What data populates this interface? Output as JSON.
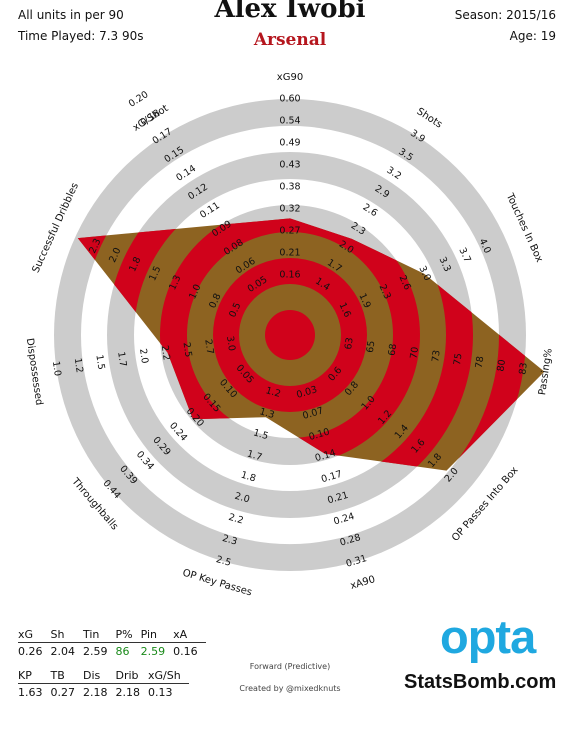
{
  "header": {
    "units_note": "All units in per 90",
    "time_played": "Time Played: 7.3 90s",
    "player": "Alex Iwobi",
    "team": "Arsenal",
    "season": "Season: 2015/16",
    "age": "Age: 19"
  },
  "colors": {
    "ring_dark": "#d0021b",
    "ring_light": "#8d6321",
    "grey": "#cccccc",
    "team": "#b5161e",
    "opta": "#1fa8e0"
  },
  "chart_data": {
    "type": "radar",
    "player": "Alex Iwobi",
    "axes": [
      {
        "label": "xG90",
        "ticks": [
          "0.16",
          "0.21",
          "0.27",
          "0.32",
          "0.38",
          "0.43",
          "0.49",
          "0.54",
          "0.60"
        ],
        "value": 0.26,
        "fraction": 0.49
      },
      {
        "label": "Shots",
        "ticks": [
          "1.4",
          "1.7",
          "2.0",
          "2.3",
          "2.6",
          "2.9",
          "3.2",
          "3.5",
          "3.9"
        ],
        "value": 2.04,
        "fraction": 0.48
      },
      {
        "label": "Touches In Box",
        "ticks": [
          "1.6",
          "1.9",
          "2.3",
          "2.6",
          "3.0",
          "3.3",
          "3.7",
          "4.0"
        ],
        "value": 2.59,
        "fraction": 0.62
      },
      {
        "label": "Passing%",
        "ticks": [
          "63",
          "65",
          "68",
          "70",
          "73",
          "75",
          "78",
          "80",
          "83"
        ],
        "value": 86,
        "fraction": 1.08
      },
      {
        "label": "OP Passes Into Box",
        "ticks": [
          "0.6",
          "0.8",
          "1.0",
          "1.2",
          "1.4",
          "1.6",
          "1.8",
          "2.0"
        ],
        "value": 2.59,
        "fraction": 0.87
      },
      {
        "label": "xA90",
        "ticks": [
          "0.03",
          "0.07",
          "0.10",
          "0.14",
          "0.17",
          "0.21",
          "0.24",
          "0.28",
          "0.31"
        ],
        "value": 0.16,
        "fraction": 0.52
      },
      {
        "label": "OP Key Passes",
        "ticks": [
          "1.2",
          "1.3",
          "1.5",
          "1.7",
          "1.8",
          "2.0",
          "2.2",
          "2.3",
          "2.5"
        ],
        "value": 1.63,
        "fraction": 0.36
      },
      {
        "label": "Throughballs",
        "ticks": [
          "0.05",
          "0.10",
          "0.15",
          "0.20",
          "0.24",
          "0.29",
          "0.34",
          "0.39",
          "0.44"
        ],
        "value": 0.27,
        "fraction": 0.54
      },
      {
        "label": "Dispossessed",
        "ticks": [
          "3.0",
          "2.7",
          "2.5",
          "2.2",
          "2.0",
          "1.7",
          "1.5",
          "1.2",
          "1.0"
        ],
        "value": 2.18,
        "fraction": 0.52
      },
      {
        "label": "Successful Dribbles",
        "ticks": [
          "0.5",
          "0.8",
          "1.0",
          "1.3",
          "1.5",
          "1.8",
          "2.0",
          "2.3"
        ],
        "value": 2.18,
        "fraction": 0.98
      },
      {
        "label": "xG/Shot",
        "ticks": [
          "0.05",
          "0.06",
          "0.08",
          "0.09",
          "0.11",
          "0.12",
          "0.14",
          "0.15",
          "0.17",
          "0.18",
          "0.20"
        ],
        "value": 0.13,
        "fraction": 0.55
      }
    ]
  },
  "stats_table_1": {
    "headers": [
      "xG",
      "Sh",
      "Tin",
      "P%",
      "Pin",
      "xA"
    ],
    "values": [
      "0.26",
      "2.04",
      "2.59",
      "86",
      "2.59",
      "0.16"
    ],
    "highlight_color": "#1a8a1a",
    "highlight_indices": [
      3,
      4
    ]
  },
  "stats_table_2": {
    "headers": [
      "KP",
      "TB",
      "Dis",
      "Drib",
      "xG/Sh"
    ],
    "values": [
      "1.63",
      "0.27",
      "2.18",
      "2.18",
      "0.13"
    ]
  },
  "footer": {
    "position": "Forward (Predictive)",
    "credit": "Created by @mixedknuts"
  },
  "branding": {
    "opta": "opta",
    "statsbomb": "StatsBomb.com"
  }
}
